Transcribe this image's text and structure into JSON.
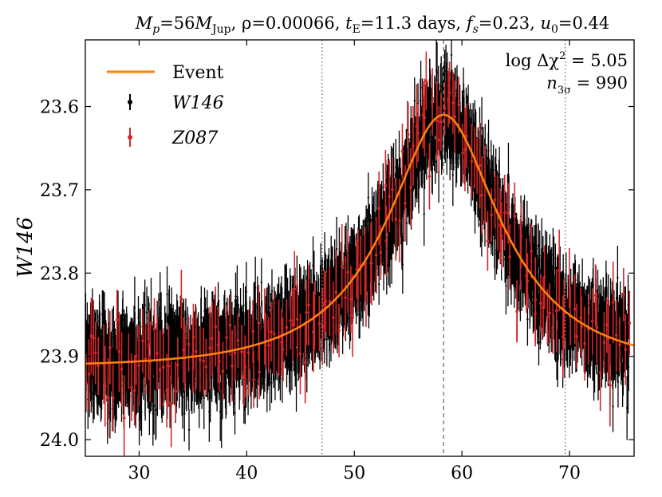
{
  "chart_data": {
    "type": "line",
    "title": "M_p=56M_Jup, ρ=0.00066, t_E=11.3 days, f_s=0.23, u_0=0.44",
    "title_parts": {
      "mp": "M",
      "mp_sub": "p",
      "mp_eq": "=56",
      "mjup": "M",
      "mjup_sub": "Jup",
      "rho": ", ρ=0.00066, ",
      "te": "t",
      "te_sub": "E",
      "te_eq": "=11.3 days, ",
      "fs": "f",
      "fs_sub": "s",
      "fs_eq": "=0.23, ",
      "u0": "u",
      "u0_sub": "0",
      "u0_eq": "=0.44"
    },
    "xlabel": "",
    "ylabel": "W146",
    "xlim": [
      25,
      76
    ],
    "ylim": [
      24.02,
      23.52
    ],
    "y_inverted": true,
    "x_ticks": [
      30,
      40,
      50,
      60,
      70
    ],
    "y_ticks": [
      23.6,
      23.7,
      23.8,
      23.9,
      24.0
    ],
    "y_tick_labels": [
      "23.6",
      "23.7",
      "23.8",
      "23.9",
      "24.0"
    ],
    "x_tick_labels": [
      "30",
      "40",
      "50",
      "60",
      "70"
    ],
    "grid": false,
    "legend_position": "top-left",
    "legend": [
      "Event",
      "W146",
      "Z087"
    ],
    "annotations": {
      "delta_chi2_prefix": "log Δχ",
      "delta_chi2_sup": "2",
      "delta_chi2_value": " = 5.05",
      "n3sigma_prefix": "n",
      "n3sigma_sub": "3σ",
      "n3sigma_value": " = 990"
    },
    "vlines": [
      {
        "x": 47.0,
        "style": "dotted",
        "color": "#808080"
      },
      {
        "x": 58.3,
        "style": "dashed",
        "color": "#808080"
      },
      {
        "x": 69.6,
        "style": "dotted",
        "color": "#808080"
      }
    ],
    "series": [
      {
        "name": "Event",
        "kind": "model",
        "color": "#ff7f0e",
        "baseline": 23.913,
        "peak_mag": 23.61,
        "t0": 58.3,
        "tE": 11.3,
        "u0": 0.44,
        "fs": 0.23,
        "x_range": [
          25,
          76
        ]
      },
      {
        "name": "W146",
        "kind": "errorbar",
        "color": "#000000",
        "x_range": [
          25,
          75.5
        ],
        "n_points": 2300,
        "y_scatter": 0.025,
        "y_err": 0.03
      },
      {
        "name": "Z087",
        "kind": "errorbar",
        "color": "#d62728",
        "x_range": [
          25,
          75.5
        ],
        "n_points": 190,
        "y_scatter": 0.025,
        "y_err": 0.04
      }
    ]
  }
}
